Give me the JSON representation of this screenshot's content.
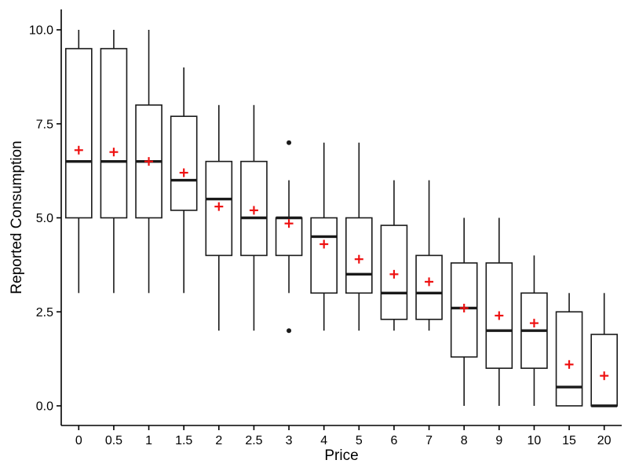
{
  "chart_data": {
    "type": "boxplot",
    "title": "",
    "xlabel": "Price",
    "ylabel": "Reported Consumption",
    "ylim": [
      0,
      10
    ],
    "yticks": [
      0,
      2.5,
      5,
      7.5,
      10
    ],
    "ytick_labels": [
      "0.0",
      "2.5",
      "5.0",
      "7.5",
      "10.0"
    ],
    "categories": [
      "0",
      "0.5",
      "1",
      "1.5",
      "2",
      "2.5",
      "3",
      "4",
      "5",
      "6",
      "7",
      "8",
      "9",
      "10",
      "15",
      "20"
    ],
    "series": [
      {
        "category": "0",
        "whisker_low": 3,
        "q1": 5,
        "median": 6.5,
        "q3": 9.5,
        "whisker_high": 10,
        "mean": 6.8,
        "outliers": []
      },
      {
        "category": "0.5",
        "whisker_low": 3,
        "q1": 5,
        "median": 6.5,
        "q3": 9.5,
        "whisker_high": 10,
        "mean": 6.75,
        "outliers": []
      },
      {
        "category": "1",
        "whisker_low": 3,
        "q1": 5,
        "median": 6.5,
        "q3": 8,
        "whisker_high": 10,
        "mean": 6.5,
        "outliers": []
      },
      {
        "category": "1.5",
        "whisker_low": 3,
        "q1": 5.2,
        "median": 6,
        "q3": 7.7,
        "whisker_high": 9,
        "mean": 6.2,
        "outliers": []
      },
      {
        "category": "2",
        "whisker_low": 2,
        "q1": 4,
        "median": 5.5,
        "q3": 6.5,
        "whisker_high": 8,
        "mean": 5.3,
        "outliers": []
      },
      {
        "category": "2.5",
        "whisker_low": 2,
        "q1": 4,
        "median": 5,
        "q3": 6.5,
        "whisker_high": 8,
        "mean": 5.2,
        "outliers": []
      },
      {
        "category": "3",
        "whisker_low": 3,
        "q1": 4,
        "median": 5,
        "q3": 5,
        "whisker_high": 6,
        "mean": 4.85,
        "outliers": [
          7,
          2
        ]
      },
      {
        "category": "4",
        "whisker_low": 2,
        "q1": 3,
        "median": 4.5,
        "q3": 5,
        "whisker_high": 7,
        "mean": 4.3,
        "outliers": []
      },
      {
        "category": "5",
        "whisker_low": 2,
        "q1": 3,
        "median": 3.5,
        "q3": 5,
        "whisker_high": 7,
        "mean": 3.9,
        "outliers": []
      },
      {
        "category": "6",
        "whisker_low": 2,
        "q1": 2.3,
        "median": 3,
        "q3": 4.8,
        "whisker_high": 6,
        "mean": 3.5,
        "outliers": []
      },
      {
        "category": "7",
        "whisker_low": 2,
        "q1": 2.3,
        "median": 3,
        "q3": 4,
        "whisker_high": 6,
        "mean": 3.3,
        "outliers": []
      },
      {
        "category": "8",
        "whisker_low": 0,
        "q1": 1.3,
        "median": 2.6,
        "q3": 3.8,
        "whisker_high": 5,
        "mean": 2.6,
        "outliers": []
      },
      {
        "category": "9",
        "whisker_low": 0,
        "q1": 1,
        "median": 2,
        "q3": 3.8,
        "whisker_high": 5,
        "mean": 2.4,
        "outliers": []
      },
      {
        "category": "10",
        "whisker_low": 0,
        "q1": 1,
        "median": 2,
        "q3": 3,
        "whisker_high": 4,
        "mean": 2.2,
        "outliers": []
      },
      {
        "category": "15",
        "whisker_low": 0,
        "q1": 0,
        "median": 0.5,
        "q3": 2.5,
        "whisker_high": 3,
        "mean": 1.1,
        "outliers": []
      },
      {
        "category": "20",
        "whisker_low": 0,
        "q1": 0,
        "median": 0,
        "q3": 1.9,
        "whisker_high": 3,
        "mean": 0.8,
        "outliers": []
      }
    ],
    "style": {
      "box_color": "#1a1a1a",
      "axis_color": "#000000",
      "mean_color": "#ee1111",
      "mean_symbol": "+",
      "background": "#ffffff",
      "grid": "off",
      "legend": "none"
    }
  }
}
